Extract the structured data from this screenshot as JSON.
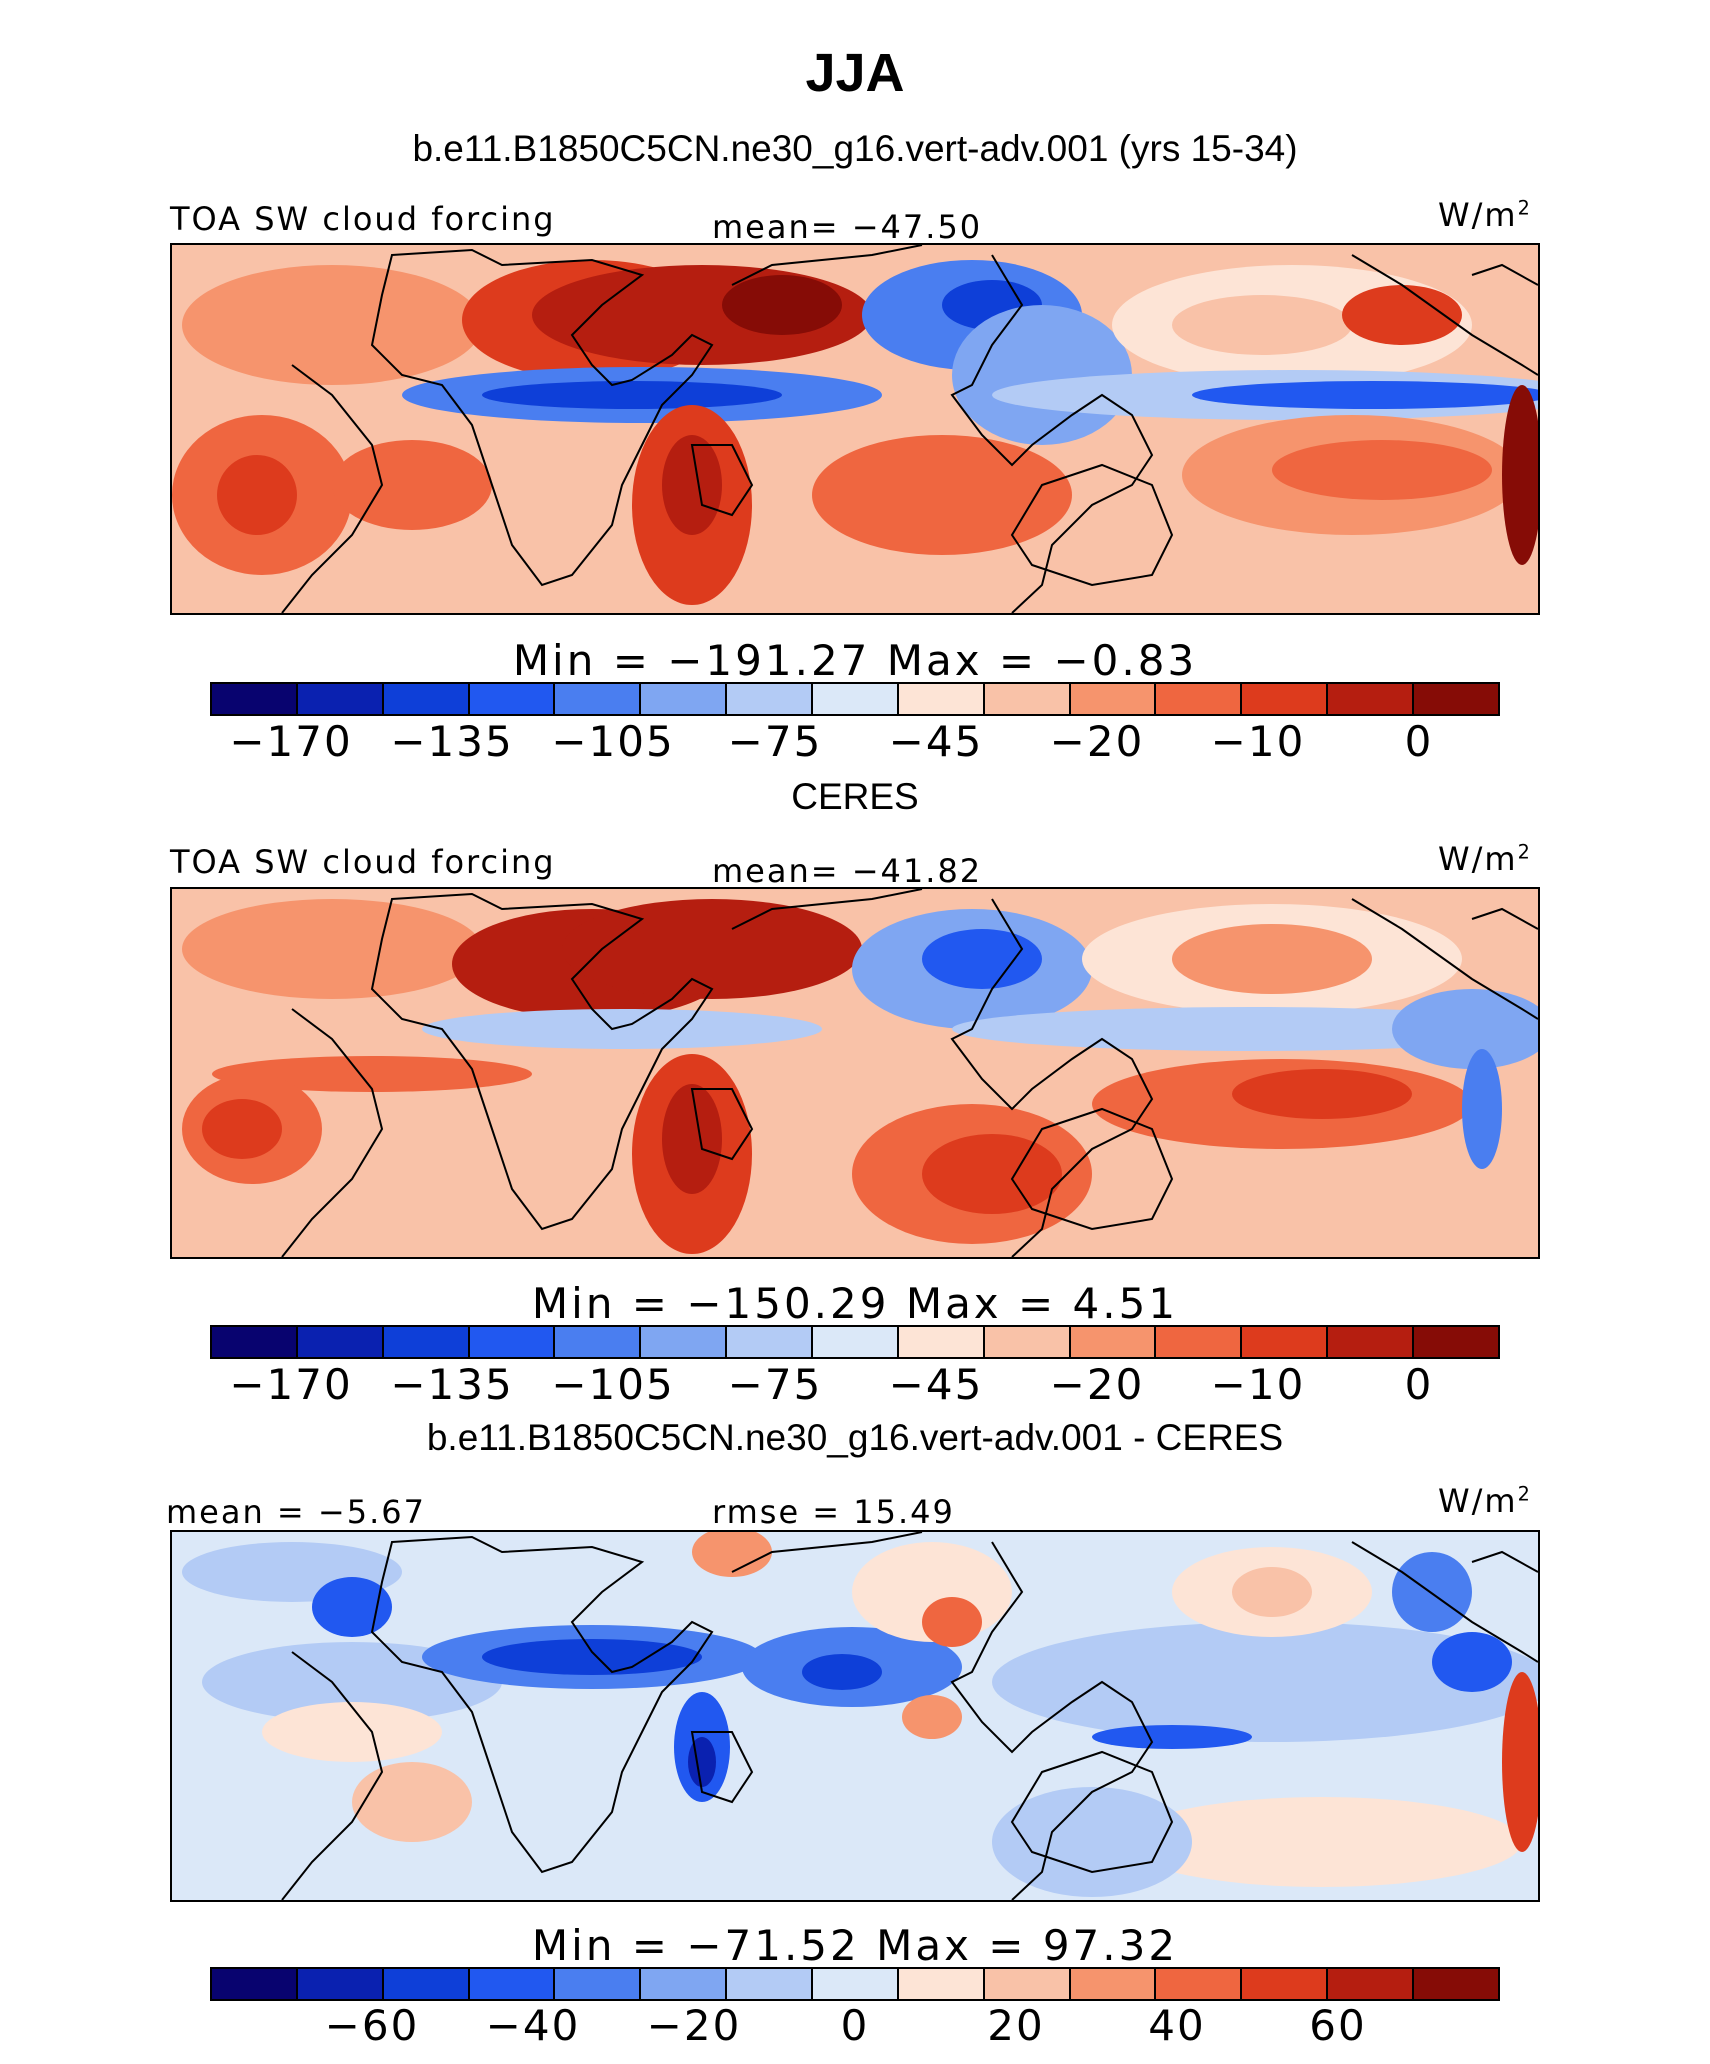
{
  "title": "JJA",
  "colors": {
    "scale": [
      "#08036f",
      "#0a21b0",
      "#0e3fd8",
      "#2158f0",
      "#4a7ef0",
      "#7fa6f2",
      "#b3cbf5",
      "#dbe8f8",
      "#fde4d6",
      "#f9c2a8",
      "#f6946d",
      "#ef6640",
      "#dd3b1d",
      "#b51e10",
      "#860c06"
    ],
    "ocean_mid": "#f3a88a",
    "coast": "#000000"
  },
  "panels": [
    {
      "subtitle": "b.e11.B1850C5CN.ne30_g16.vert-adv.001 (yrs 15-34)",
      "left_label": "TOA SW cloud forcing",
      "center_label": "mean=  −47.50",
      "units_base": "W/m",
      "units_exp": "2",
      "minmax": "Min  =  −191.27  Max  =    −0.83",
      "ticks": [
        "−170",
        "−135",
        "−105",
        "−75",
        "−45",
        "−20",
        "−10",
        "0"
      ]
    },
    {
      "subtitle": "CERES",
      "left_label": "TOA SW cloud forcing",
      "center_label": "mean=  −41.82",
      "units_base": "W/m",
      "units_exp": "2",
      "minmax": "Min  =  −150.29  Max  =    4.51",
      "ticks": [
        "−170",
        "−135",
        "−105",
        "−75",
        "−45",
        "−20",
        "−10",
        "0"
      ]
    },
    {
      "subtitle": "b.e11.B1850C5CN.ne30_g16.vert-adv.001 - CERES",
      "left_label": "mean  =   −5.67",
      "center_label": "rmse  =   15.49",
      "units_base": "W/m",
      "units_exp": "2",
      "minmax": "Min  =  −71.52  Max  =    97.32",
      "ticks": [
        "−60",
        "−40",
        "−20",
        "0",
        "20",
        "40",
        "60"
      ]
    }
  ]
}
